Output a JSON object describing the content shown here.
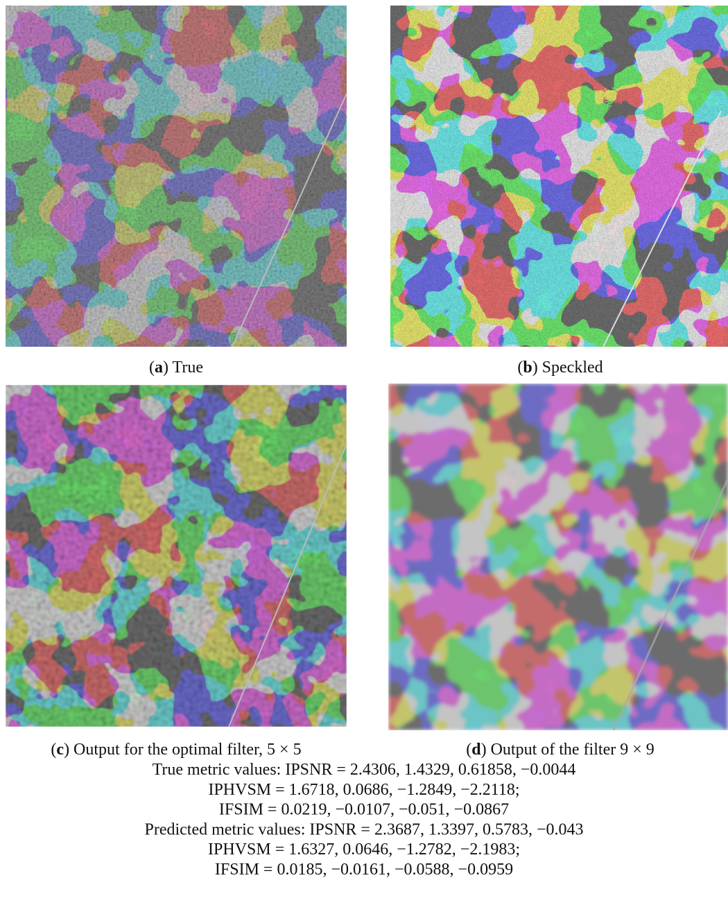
{
  "figure": {
    "panels": [
      {
        "caption": [
          "(",
          "a",
          ") True"
        ]
      },
      {
        "caption": [
          "(",
          "b",
          ") Speckled"
        ]
      },
      {
        "caption": [
          "(",
          "c",
          ") Output for the optimal filter, 5 × 5"
        ]
      },
      {
        "caption": [
          "(",
          "d",
          ") Output of the filter 9 × 9"
        ]
      }
    ],
    "metrics": [
      "True metric values: IPSNR = 2.4306, 1.4329, 0.61858, −0.0044",
      "IPHVSM = 1.6718, 0.0686, −1.2849, −2.2118;",
      "IFSIM = 0.0219, −0.0107, −0.051, −0.0867",
      "Predicted metric values: IPSNR = 2.3687, 1.3397, 0.5783, −0.043",
      "IPHVSM = 1.6327, 0.0646, −1.2782, −2.1983;",
      "IFSIM = 0.0185, −0.0161, −0.0588, −0.0959"
    ]
  }
}
